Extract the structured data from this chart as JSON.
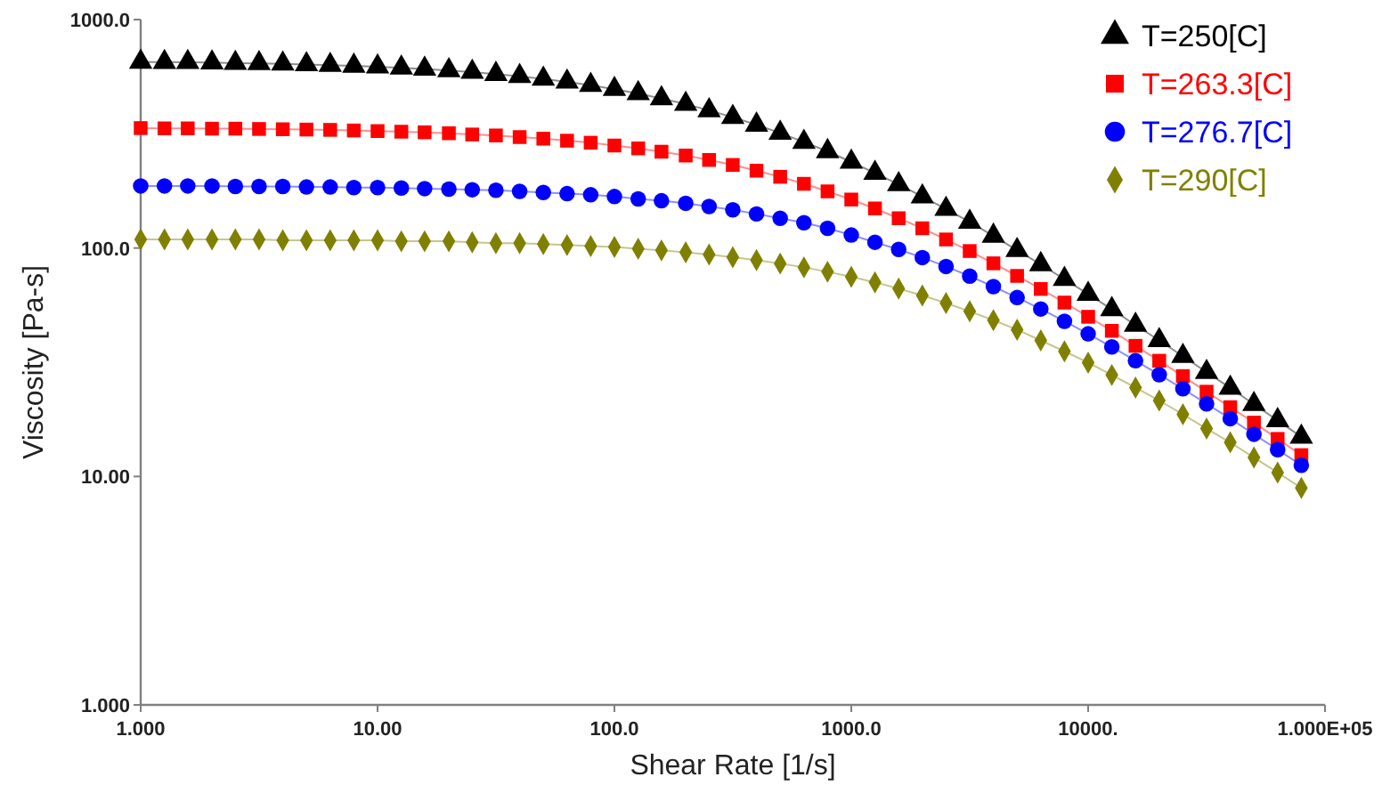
{
  "chart_data": {
    "type": "line",
    "xlabel": "Shear Rate [1/s]",
    "ylabel": "Viscosity [Pa-s]",
    "log": "xy",
    "grid": false,
    "legend": "top right",
    "x": [
      1,
      1.26,
      1.58,
      2,
      2.51,
      3.16,
      3.98,
      5.01,
      6.31,
      7.94,
      10,
      12.6,
      15.8,
      20,
      25.1,
      31.6,
      39.8,
      50.1,
      63.1,
      79.4,
      100,
      126,
      158,
      200,
      251,
      316,
      398,
      501,
      631,
      794,
      1000,
      1259,
      1585,
      1995,
      2512,
      3162,
      3981,
      5012,
      6310,
      7943,
      10000,
      12589,
      15849,
      19953,
      25119,
      31623,
      39811,
      50119,
      63096,
      79433
    ],
    "xlim": [
      1,
      100000
    ],
    "ylim": [
      1,
      1000
    ],
    "xticks": [
      {
        "value": 1,
        "label": "1.000"
      },
      {
        "value": 10,
        "label": "10.00"
      },
      {
        "value": 100,
        "label": "100.0"
      },
      {
        "value": 1000,
        "label": "1000.0"
      },
      {
        "value": 10000,
        "label": "10000."
      },
      {
        "value": 100000,
        "label": "1.000E+05"
      }
    ],
    "yticks": [
      {
        "value": 1,
        "label": "1.000"
      },
      {
        "value": 10,
        "label": "10.00"
      },
      {
        "value": 100,
        "label": "100.0"
      },
      {
        "value": 1000,
        "label": "1000.0"
      }
    ],
    "series": [
      {
        "name": "T=250[C]",
        "color": "#000000",
        "marker": "triangle",
        "values": [
          652,
          651,
          650,
          648,
          645,
          643,
          640,
          636,
          632,
          627,
          622,
          615,
          608,
          599,
          589,
          577,
          565,
          550,
          534,
          516,
          496,
          475,
          451,
          427,
          400,
          374,
          346,
          319,
          291,
          265,
          238,
          213,
          190,
          168,
          148,
          130,
          113,
          97.8,
          84.8,
          73.0,
          62.9,
          53.9,
          46.0,
          39.4,
          33.6,
          28.6,
          24.4,
          20.7,
          17.6,
          14.9
        ]
      },
      {
        "name": "T=263.3[C]",
        "color": "#ff0000",
        "marker": "square",
        "values": [
          335,
          334,
          334,
          333,
          333,
          332,
          331,
          330,
          329,
          327,
          325,
          323,
          321,
          318,
          314,
          311,
          306,
          301,
          295,
          289,
          281,
          273,
          264,
          254,
          243,
          231,
          218,
          205,
          191,
          177,
          163,
          149,
          135,
          122,
          109,
          97.0,
          85.7,
          75.5,
          66.2,
          57.7,
          50.0,
          43.4,
          37.3,
          32.1,
          27.5,
          23.5,
          20.1,
          17.2,
          14.6,
          12.4
        ]
      },
      {
        "name": "T=276.7[C]",
        "color": "#0000ff",
        "marker": "circle",
        "values": [
          187,
          187,
          187,
          187,
          186,
          186,
          186,
          185,
          185,
          184,
          184,
          183,
          182,
          181,
          180,
          179,
          177,
          175,
          173,
          171,
          168,
          164,
          161,
          157,
          152,
          147,
          141,
          135,
          129,
          122,
          114,
          106,
          98.6,
          90.8,
          83.0,
          75.3,
          67.8,
          60.7,
          54.1,
          47.8,
          42.1,
          36.9,
          32.1,
          27.9,
          24.2,
          20.8,
          17.9,
          15.3,
          13.1,
          11.2
        ]
      },
      {
        "name": "T=290[C]",
        "color": "#808000",
        "marker": "diamond",
        "values": [
          109,
          109,
          109,
          109,
          109,
          109,
          108,
          108,
          108,
          108,
          108,
          107,
          107,
          107,
          106,
          105,
          105,
          104,
          103,
          102,
          101,
          99.3,
          97.6,
          95.7,
          93.6,
          91.2,
          88.5,
          85.5,
          82.3,
          78.7,
          74.8,
          70.8,
          66.4,
          62.0,
          57.4,
          52.8,
          48.3,
          43.9,
          39.4,
          35.3,
          31.5,
          27.8,
          24.5,
          21.5,
          18.7,
          16.2,
          14.1,
          12.1,
          10.4,
          8.9
        ]
      }
    ]
  }
}
